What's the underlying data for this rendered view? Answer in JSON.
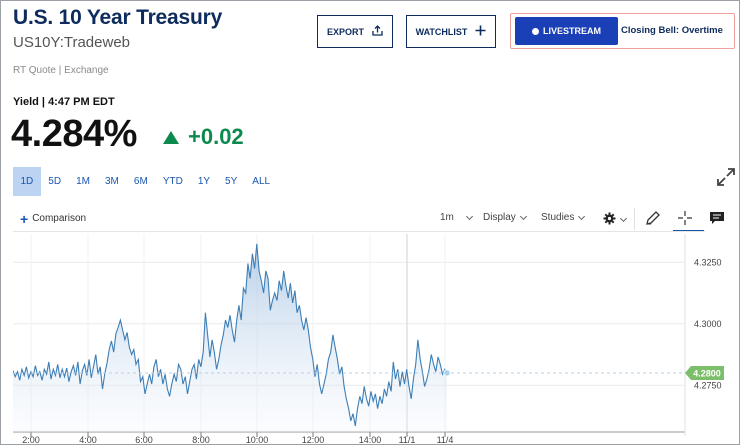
{
  "header": {
    "title": "U.S. 10 Year Treasury",
    "symbol": "US10Y:Tradeweb",
    "quote_source": "RT Quote | Exchange"
  },
  "actions": {
    "export_label": "EXPORT",
    "watchlist_label": "WATCHLIST",
    "livestream_label": "LIVESTREAM",
    "live_show": "Closing Bell: Overtime"
  },
  "quote": {
    "yield_label": "Yield | 4:47 PM EDT",
    "price": "4.284%",
    "change": "+0.02",
    "change_color": "#0c8a4e"
  },
  "ranges": [
    {
      "label": "1D",
      "active": true
    },
    {
      "label": "5D"
    },
    {
      "label": "1M"
    },
    {
      "label": "3M"
    },
    {
      "label": "6M"
    },
    {
      "label": "YTD"
    },
    {
      "label": "1Y"
    },
    {
      "label": "5Y"
    },
    {
      "label": "ALL"
    }
  ],
  "toolbar": {
    "comparison": "Comparison",
    "interval": "1m",
    "display": "Display",
    "studies": "Studies",
    "icons": [
      "gear-icon",
      "pencil-icon",
      "crosshair-icon",
      "comment-icon"
    ]
  },
  "chart_data": {
    "type": "area",
    "x_ticks": [
      "2:00",
      "4:00",
      "6:00",
      "8:00",
      "10:00",
      "12:00",
      "14:00",
      "11/1",
      "11/4"
    ],
    "y_ticks": [
      4.325,
      4.3,
      4.275
    ],
    "y_tick_labels": [
      "4.3250",
      "4.3000",
      "4.2750"
    ],
    "ylim": [
      4.256,
      4.3365
    ],
    "current_value_label": "4.2800",
    "current_value": 4.28,
    "line_color": "#3d7eb6",
    "fill_color": "#c7d9ec",
    "current_label_color": "#7cbf6a",
    "grid": true,
    "series": [
      {
        "values": [
          4.281,
          4.2785,
          4.2805,
          4.277,
          4.2815,
          4.279,
          4.2825,
          4.278,
          4.2805,
          4.2785,
          4.283,
          4.279,
          4.2805,
          4.277,
          4.2815,
          4.2795,
          4.2845,
          4.2775,
          4.2815,
          4.279,
          4.2835,
          4.278,
          4.2815,
          4.2785,
          4.282,
          4.2765,
          4.2805,
          4.283,
          4.279,
          4.2845,
          4.2755,
          4.281,
          4.2835,
          4.279,
          4.2855,
          4.278,
          4.2825,
          4.2875,
          4.2795,
          4.2825,
          4.2735,
          4.2795,
          4.284,
          4.2895,
          4.293,
          4.2885,
          4.296,
          4.2985,
          4.3015,
          4.2975,
          4.2935,
          4.2965,
          4.2905,
          4.2875,
          4.2895,
          4.2835,
          4.2855,
          4.2765,
          4.2785,
          4.2715,
          4.2755,
          4.2795,
          4.2755,
          4.2825,
          4.2855,
          4.2785,
          4.2815,
          4.2755,
          4.2795,
          4.2735,
          4.2705,
          4.2755,
          4.2795,
          4.2765,
          4.2835,
          4.2815,
          4.2755,
          4.2785,
          4.2715,
          4.2765,
          4.2815,
          4.2835,
          4.2775,
          4.2855,
          4.2825,
          4.2885,
          4.3045,
          4.2955,
          4.2865,
          4.2935,
          4.2885,
          4.2815,
          4.2855,
          4.2915,
          4.2955,
          4.3015,
          4.2985,
          4.3035,
          4.2975,
          4.2925,
          4.3015,
          4.3075,
          4.3015,
          4.3145,
          4.3125,
          4.3245,
          4.3185,
          4.3285,
          4.3225,
          4.3325,
          4.3215,
          4.3175,
          4.3125,
          4.3215,
          4.3185,
          4.3055,
          4.3095,
          4.3125,
          4.3095,
          4.3175,
          4.3135,
          4.3215,
          4.3155,
          4.3105,
          4.3165,
          4.3085,
          4.3135,
          4.3045,
          4.3075,
          4.3015,
          4.2975,
          4.3025,
          4.2975,
          4.2905,
          4.2855,
          4.2785,
          4.2835,
          4.2755,
          4.2715,
          4.2755,
          4.2795,
          4.2855,
          4.2885,
          4.2955,
          4.2905,
          4.2855,
          4.2795,
          4.2825,
          4.2745,
          4.2695,
          4.2655,
          4.2605,
          4.2635,
          4.2585,
          4.2655,
          4.2705,
          4.2675,
          4.2745,
          4.2695,
          4.2665,
          4.2725,
          4.2685,
          4.2715,
          4.2655,
          4.2705,
          4.2675,
          4.2735,
          4.2705,
          4.2765,
          4.2725,
          4.2845,
          4.2775,
          4.2815,
          4.2745,
          4.2805,
          4.2755,
          4.2815,
          4.2745,
          4.2695,
          4.2775,
          4.2835,
          4.2935,
          4.2855,
          4.2805,
          4.2745,
          4.2775,
          4.2815,
          4.2875,
          4.2835,
          4.2805,
          4.2865,
          4.2835,
          4.2795,
          4.2815,
          4.28
        ]
      }
    ]
  }
}
